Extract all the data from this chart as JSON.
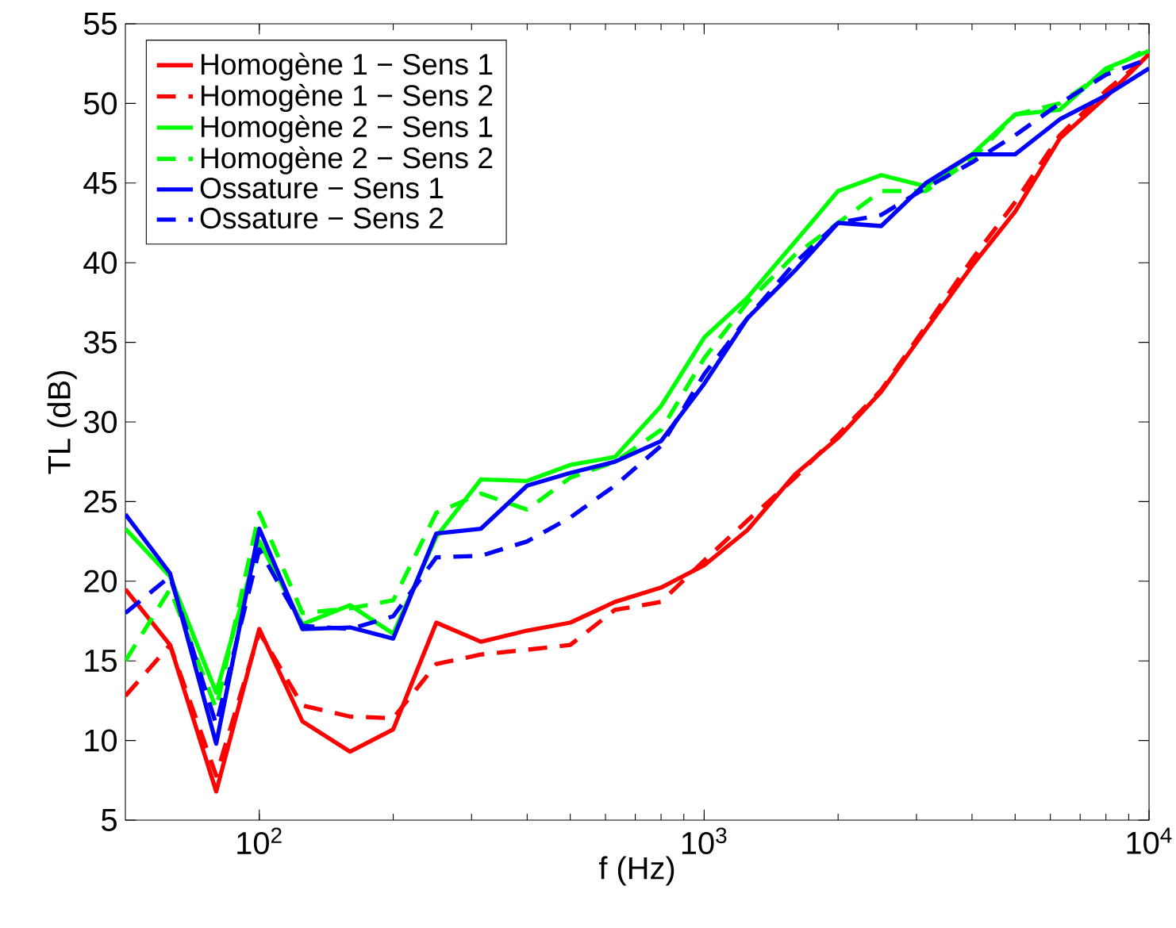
{
  "chart_data": {
    "type": "line",
    "xlabel": "f (Hz)",
    "ylabel": "TL (dB)",
    "log": "x",
    "xlim": [
      50,
      10000
    ],
    "ylim": [
      5,
      55
    ],
    "xticks": [
      {
        "value": 100,
        "label": "10$^{2}$"
      },
      {
        "value": 1000,
        "label": "10$^{3}$"
      },
      {
        "value": 10000,
        "label": "10$^{4}$"
      }
    ],
    "yticks": [
      5,
      10,
      15,
      20,
      25,
      30,
      35,
      40,
      45,
      50,
      55
    ],
    "legend": "top left",
    "grid": false,
    "x": [
      50,
      63,
      80,
      100,
      125,
      160,
      200,
      250,
      315,
      400,
      500,
      630,
      800,
      1000,
      1250,
      1600,
      2000,
      2500,
      3150,
      4000,
      5000,
      6300,
      8000,
      10000
    ],
    "series": [
      {
        "name": "Homogène 1 − Sens 1",
        "color": "#ff0000",
        "line_style": "solid",
        "values": [
          19.5,
          16,
          6.8,
          17,
          11.2,
          9.3,
          10.7,
          17.4,
          16.2,
          16.9,
          17.4,
          18.7,
          19.6,
          21,
          23.2,
          26.7,
          29,
          31.9,
          35.8,
          39.8,
          43.2,
          47.8,
          50.4,
          53.1
        ]
      },
      {
        "name": "Homogène 1 − Sens 2",
        "color": "#ff0000",
        "line_style": "dashed",
        "values": [
          12.8,
          16,
          7.8,
          16.8,
          12.2,
          11.5,
          11.4,
          14.8,
          15.4,
          15.7,
          16,
          18.2,
          18.7,
          21.3,
          23.8,
          26.5,
          29.2,
          32,
          36,
          40.2,
          43.8,
          48,
          50.8,
          53
        ]
      },
      {
        "name": "Homogène 2 − Sens 1",
        "color": "#00ff00",
        "line_style": "solid",
        "values": [
          23.3,
          20.3,
          13,
          22.5,
          17.3,
          18.5,
          16.7,
          22.8,
          26.4,
          26.3,
          27.3,
          27.8,
          31,
          35.3,
          37.8,
          41.3,
          44.5,
          45.5,
          44.8,
          46.8,
          49.3,
          49.6,
          52.2,
          53.3
        ]
      },
      {
        "name": "Homogène 2 − Sens 2",
        "color": "#00ff00",
        "line_style": "dashed",
        "values": [
          15,
          19.5,
          12,
          24.3,
          18,
          18.3,
          18.8,
          24.3,
          25.5,
          24.5,
          26.5,
          27.5,
          29.5,
          34,
          37.5,
          40.5,
          42.5,
          44.5,
          44.5,
          46.5,
          49.3,
          50,
          52,
          53.5
        ]
      },
      {
        "name": "Ossature − Sens 1",
        "color": "#0000ff",
        "line_style": "solid",
        "values": [
          24.2,
          20.5,
          9.8,
          23.3,
          17,
          17.1,
          16.4,
          23,
          23.3,
          26,
          26.8,
          27.5,
          28.8,
          32.4,
          36.5,
          39.5,
          42.5,
          42.3,
          45,
          46.8,
          46.8,
          49,
          50.5,
          52.2
        ]
      },
      {
        "name": "Ossature − Sens 2",
        "color": "#0000ff",
        "line_style": "dashed",
        "values": [
          18,
          20.3,
          11,
          22,
          17.2,
          17,
          17.8,
          21.5,
          21.6,
          22.5,
          24,
          26,
          28.5,
          33,
          36.5,
          40,
          42.5,
          43,
          44.7,
          46.3,
          48,
          50,
          51.8,
          52.8
        ]
      }
    ]
  }
}
